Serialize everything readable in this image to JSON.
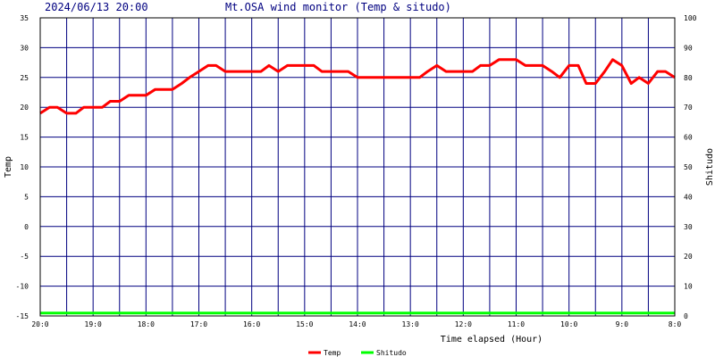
{
  "header": {
    "datetime": "2024/06/13 20:00",
    "title": "Mt.OSA wind monitor (Temp & situdo)"
  },
  "chart_data": {
    "type": "line",
    "xlabel": "Time elapsed (Hour)",
    "ylabel_left": "Temp",
    "ylabel_right": "Shitudo",
    "ylim_left": [
      -15,
      35
    ],
    "ylim_right": [
      0,
      100
    ],
    "yticks_left": [
      35,
      30,
      25,
      20,
      15,
      10,
      5,
      0,
      -5,
      -10,
      -15
    ],
    "yticks_right": [
      100,
      90,
      80,
      70,
      60,
      50,
      40,
      30,
      20,
      10,
      0
    ],
    "xlim": [
      0,
      48
    ],
    "xticks": [
      {
        "x": 0,
        "label": "20:0"
      },
      {
        "x": 4,
        "label": "19:0"
      },
      {
        "x": 8,
        "label": "18:0"
      },
      {
        "x": 12,
        "label": "17:0"
      },
      {
        "x": 16,
        "label": "16:0"
      },
      {
        "x": 20,
        "label": "15:0"
      },
      {
        "x": 24,
        "label": "14:0"
      },
      {
        "x": 28,
        "label": "13:0"
      },
      {
        "x": 32,
        "label": "12:0"
      },
      {
        "x": 36,
        "label": "11:0"
      },
      {
        "x": 40,
        "label": "10:0"
      },
      {
        "x": 44,
        "label": "9:0"
      },
      {
        "x": 48,
        "label": "8:0"
      }
    ],
    "grid": true,
    "legend_position": "bottom",
    "colors": {
      "plot_border": "#000000",
      "grid": "#000080",
      "header_text": "#000080",
      "temp": "#ff0000",
      "shitudo": "#00ff00"
    },
    "series": [
      {
        "name": "Temp",
        "axis": "left",
        "color": "#ff0000",
        "values": [
          [
            0,
            19
          ],
          [
            0.7,
            20
          ],
          [
            1.3,
            20
          ],
          [
            2.0,
            19
          ],
          [
            2.7,
            19
          ],
          [
            3.3,
            20
          ],
          [
            4.0,
            20
          ],
          [
            4.7,
            20
          ],
          [
            5.3,
            21
          ],
          [
            6.0,
            21
          ],
          [
            6.7,
            22
          ],
          [
            7.3,
            22
          ],
          [
            8.0,
            22
          ],
          [
            8.7,
            23
          ],
          [
            9.3,
            23
          ],
          [
            10.0,
            23
          ],
          [
            10.7,
            24
          ],
          [
            11.3,
            25
          ],
          [
            12.0,
            26
          ],
          [
            12.7,
            27
          ],
          [
            13.3,
            27
          ],
          [
            14.0,
            26
          ],
          [
            14.7,
            26
          ],
          [
            15.3,
            26
          ],
          [
            16.0,
            26
          ],
          [
            16.7,
            26
          ],
          [
            17.3,
            27
          ],
          [
            18.0,
            26
          ],
          [
            18.7,
            27
          ],
          [
            19.3,
            27
          ],
          [
            20.0,
            27
          ],
          [
            20.7,
            27
          ],
          [
            21.3,
            26
          ],
          [
            22.0,
            26
          ],
          [
            22.7,
            26
          ],
          [
            23.3,
            26
          ],
          [
            24.0,
            25
          ],
          [
            24.7,
            25
          ],
          [
            25.3,
            25
          ],
          [
            26.0,
            25
          ],
          [
            26.7,
            25
          ],
          [
            27.3,
            25
          ],
          [
            28.0,
            25
          ],
          [
            28.7,
            25
          ],
          [
            29.3,
            26
          ],
          [
            30.0,
            27
          ],
          [
            30.7,
            26
          ],
          [
            31.3,
            26
          ],
          [
            32.0,
            26
          ],
          [
            32.7,
            26
          ],
          [
            33.3,
            27
          ],
          [
            34.0,
            27
          ],
          [
            34.7,
            28
          ],
          [
            35.3,
            28
          ],
          [
            36.0,
            28
          ],
          [
            36.7,
            27
          ],
          [
            37.3,
            27
          ],
          [
            38.0,
            27
          ],
          [
            38.7,
            26
          ],
          [
            39.3,
            25
          ],
          [
            40.0,
            27
          ],
          [
            40.7,
            27
          ],
          [
            41.3,
            24
          ],
          [
            42.0,
            24
          ],
          [
            42.7,
            26
          ],
          [
            43.3,
            28
          ],
          [
            44.0,
            27
          ],
          [
            44.7,
            24
          ],
          [
            45.3,
            25
          ],
          [
            46.0,
            24
          ],
          [
            46.7,
            26
          ],
          [
            47.3,
            26
          ],
          [
            48.0,
            25
          ]
        ]
      },
      {
        "name": "Shitudo",
        "axis": "right",
        "color": "#00ff00",
        "values": [
          [
            0,
            1
          ],
          [
            48,
            1
          ]
        ]
      }
    ]
  }
}
